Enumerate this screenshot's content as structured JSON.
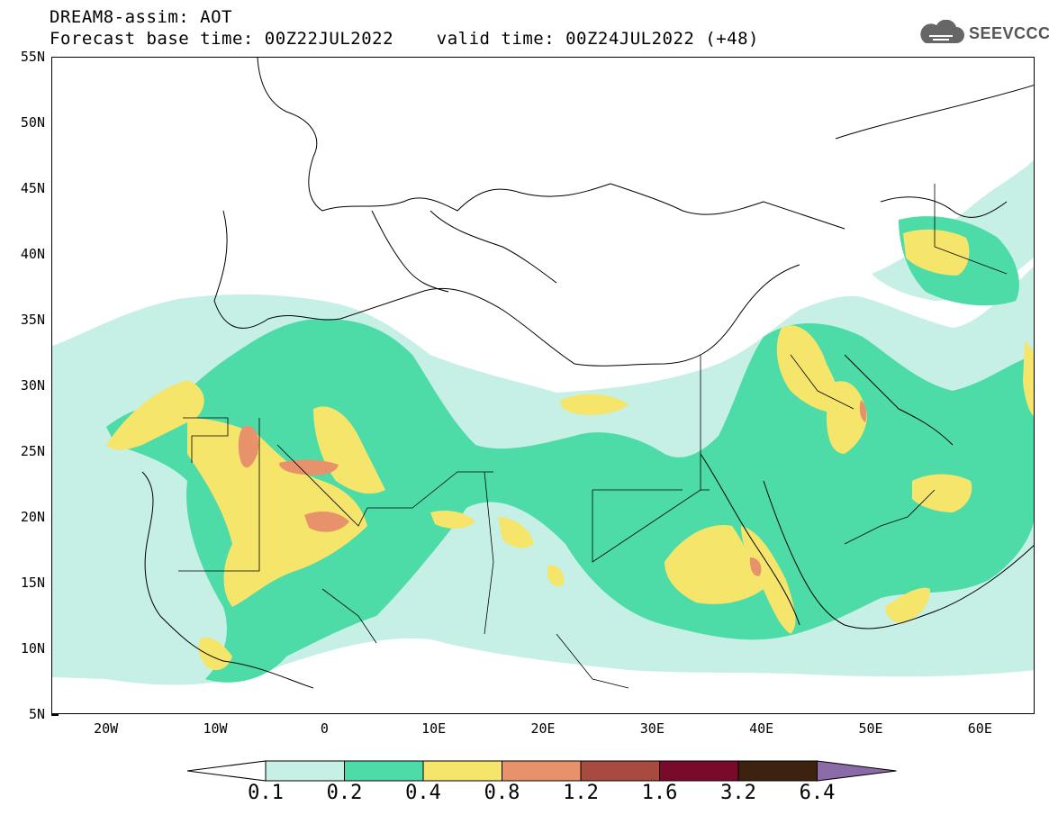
{
  "header": {
    "line1": "DREAM8-assim: AOT",
    "line2": "Forecast base time: 00Z22JUL2022    valid time: 00Z24JUL2022 (+48)",
    "logo_text": "SEEVCCC",
    "logo_icon": "cloud-icon"
  },
  "axes": {
    "lat_labels": [
      "55N",
      "50N",
      "45N",
      "40N",
      "35N",
      "30N",
      "25N",
      "20N",
      "15N",
      "10N",
      "5N"
    ],
    "lon_labels": [
      "20W",
      "10W",
      "0",
      "10E",
      "20E",
      "30E",
      "40E",
      "50E",
      "60E"
    ],
    "lat_range": [
      5,
      55
    ],
    "lon_range": [
      -25,
      65
    ]
  },
  "colorbar": {
    "labels": [
      "0.1",
      "0.2",
      "0.4",
      "0.8",
      "1.2",
      "1.6",
      "3.2",
      "6.4"
    ],
    "colors": [
      "#ffffff",
      "#c6efe6",
      "#4ddba7",
      "#f5e56b",
      "#e8926b",
      "#a84a3f",
      "#7a0a2a",
      "#3d2210",
      "#8b6aa8"
    ]
  },
  "layers": {
    "light": "#c6efe6",
    "green": "#4ddba7",
    "yellow": "#f5e56b",
    "orange": "#e8926b",
    "coast": "#000000"
  }
}
